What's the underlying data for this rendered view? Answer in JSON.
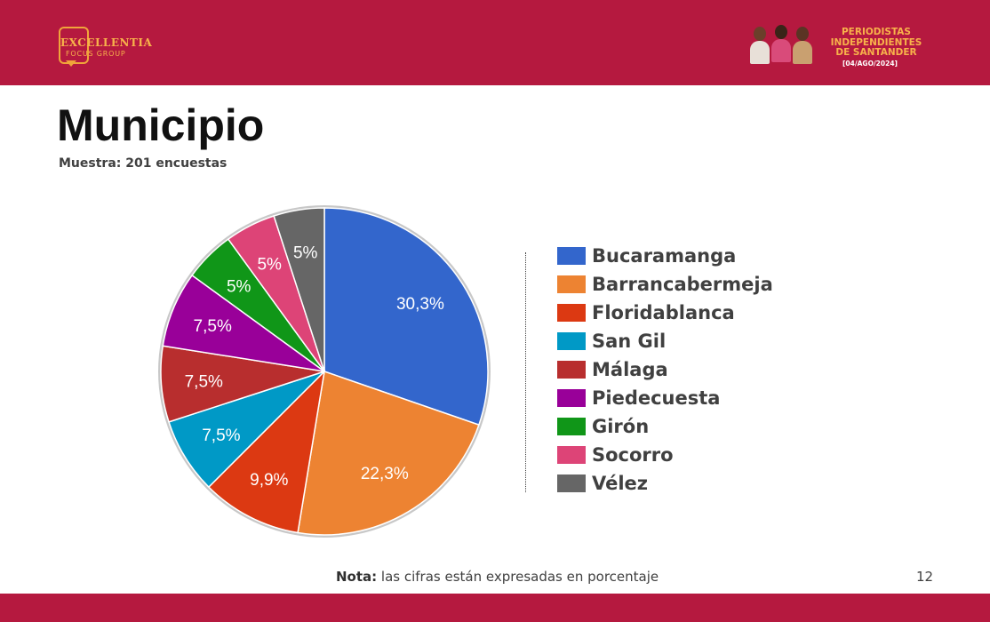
{
  "header": {
    "logo_text": "EXCELLENTIA",
    "logo_subtext": "FOCUS GROUP",
    "brand_line1": "PERIODISTAS",
    "brand_line2": "INDEPENDIENTES",
    "brand_line3": "DE SANTANDER",
    "brand_date": "[04/AGO/2024]"
  },
  "chart_data": {
    "type": "pie",
    "title": "Municipio",
    "subtitle": "Muestra: 201 encuestas",
    "categories": [
      "Bucaramanga",
      "Barrancabermeja",
      "Floridablanca",
      "San Gil",
      "Málaga",
      "Piedecuesta",
      "Girón",
      "Socorro",
      "Vélez"
    ],
    "values": [
      30.3,
      22.3,
      9.9,
      7.5,
      7.5,
      7.5,
      5,
      5,
      5
    ],
    "labels": [
      "30,3%",
      "22,3%",
      "9,9%",
      "7,5%",
      "7,5%",
      "7,5%",
      "5%",
      "5%",
      "5%"
    ],
    "colors": [
      "#3366cc",
      "#ed8332",
      "#dc3912",
      "#0099c6",
      "#b82e2e",
      "#990099",
      "#109618",
      "#dd4477",
      "#666666"
    ],
    "legend_position": "right"
  },
  "footer": {
    "note_label": "Nota:",
    "note_text": " las cifras están expresadas en porcentaje",
    "page_number": "12"
  }
}
